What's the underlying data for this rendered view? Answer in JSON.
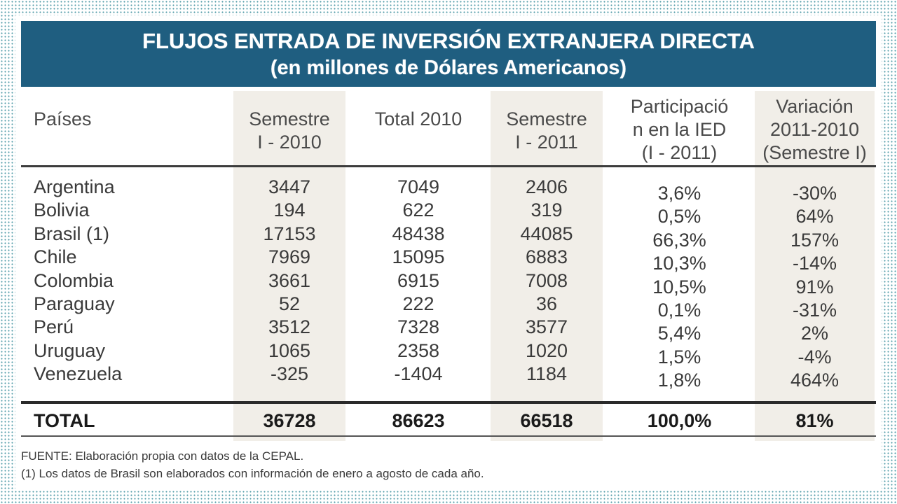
{
  "title": {
    "line1": "FLUJOS ENTRADA DE INVERSIÓN EXTRANJERA DIRECTA",
    "line2": "(en millones de Dólares Americanos)"
  },
  "headers": {
    "country": "Países",
    "sem1_2010": [
      "Semestre",
      "I - 2010"
    ],
    "total_2010": "Total 2010",
    "sem1_2011": [
      "Semestre",
      "I - 2011"
    ],
    "participation": [
      "Participació",
      "n en la IED",
      "(I - 2011)"
    ],
    "variation": [
      "Variación",
      "2011-2010",
      "(Semestre I)"
    ]
  },
  "rows": [
    {
      "country": "Argentina",
      "sem1_2010": "3447",
      "total_2010": "7049",
      "sem1_2011": "2406",
      "participation": "3,6%",
      "variation": "-30%"
    },
    {
      "country": "Bolivia",
      "sem1_2010": "194",
      "total_2010": "622",
      "sem1_2011": "319",
      "participation": "0,5%",
      "variation": "64%"
    },
    {
      "country": "Brasil (1)",
      "sem1_2010": "17153",
      "total_2010": "48438",
      "sem1_2011": "44085",
      "participation": "66,3%",
      "variation": "157%"
    },
    {
      "country": "Chile",
      "sem1_2010": "7969",
      "total_2010": "15095",
      "sem1_2011": "6883",
      "participation": "10,3%",
      "variation": "-14%"
    },
    {
      "country": "Colombia",
      "sem1_2010": "3661",
      "total_2010": "6915",
      "sem1_2011": "7008",
      "participation": "10,5%",
      "variation": "91%"
    },
    {
      "country": "Paraguay",
      "sem1_2010": "52",
      "total_2010": "222",
      "sem1_2011": "36",
      "participation": "0,1%",
      "variation": "-31%"
    },
    {
      "country": "Perú",
      "sem1_2010": "3512",
      "total_2010": "7328",
      "sem1_2011": "3577",
      "participation": "5,4%",
      "variation": "2%"
    },
    {
      "country": "Uruguay",
      "sem1_2010": "1065",
      "total_2010": "2358",
      "sem1_2011": "1020",
      "participation": "1,5%",
      "variation": "-4%"
    },
    {
      "country": "Venezuela",
      "sem1_2010": "-325",
      "total_2010": "-1404",
      "sem1_2011": "1184",
      "participation": "1,8%",
      "variation": "464%"
    }
  ],
  "total": {
    "label": "TOTAL",
    "sem1_2010": "36728",
    "total_2010": "86623",
    "sem1_2011": "66518",
    "participation": "100,0%",
    "variation": "81%"
  },
  "footnotes": {
    "source": "FUENTE: Elaboración propia con datos de la CEPAL.",
    "note": "(1) Los datos de Brasil son elaborados con información de enero a agosto de cada año."
  },
  "colors": {
    "banner": "#1f5e80",
    "shaded_column": "#f1eee8",
    "dotted_border": "#4f9aa6"
  }
}
